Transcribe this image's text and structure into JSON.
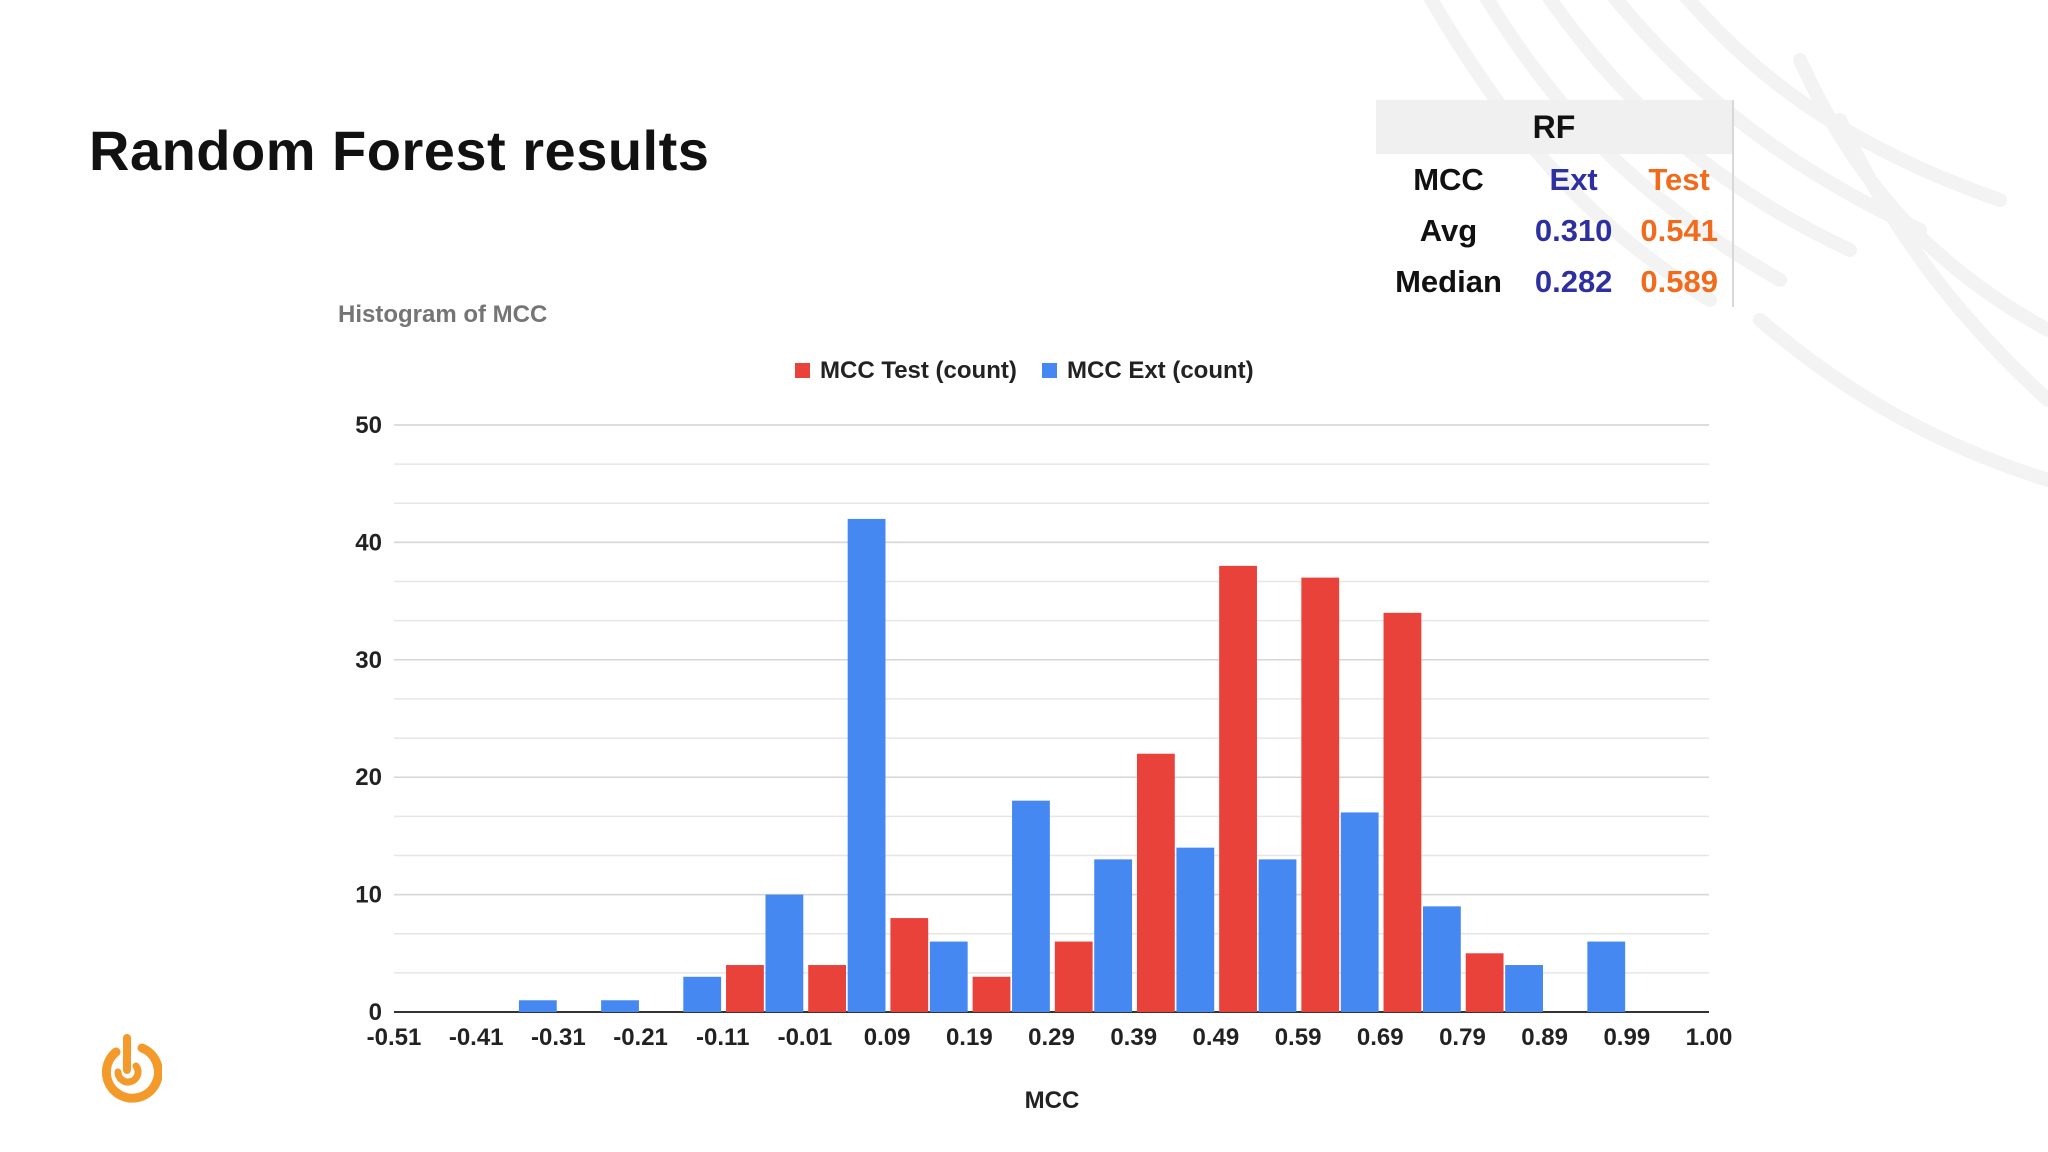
{
  "page": {
    "title": "Random Forest results"
  },
  "rf_table": {
    "header": "RF",
    "col_metric": "MCC",
    "col_ext": "Ext",
    "col_test": "Test",
    "rows": [
      {
        "label": "Avg",
        "ext": "0.310",
        "test": "0.541"
      },
      {
        "label": "Median",
        "ext": "0.282",
        "test": "0.589"
      }
    ]
  },
  "colors": {
    "test": "#e8423a",
    "ext": "#4688f1",
    "ext_text": "#2e2fa0",
    "test_text": "#f26a1b",
    "logo": "#f39a2a"
  },
  "icons": {
    "logo": "power-logo-icon"
  },
  "chart_data": {
    "type": "bar",
    "title": "Histogram of MCC",
    "xlabel": "MCC",
    "ylabel": "",
    "ylim": [
      0,
      50
    ],
    "yticks": [
      0,
      10,
      20,
      30,
      40,
      50
    ],
    "bin_edges": [
      "-0.51",
      "-0.41",
      "-0.31",
      "-0.21",
      "-0.11",
      "-0.01",
      "0.09",
      "0.19",
      "0.29",
      "0.39",
      "0.49",
      "0.59",
      "0.69",
      "0.79",
      "0.89",
      "0.99",
      "1.00"
    ],
    "series": [
      {
        "name": "MCC Test (count)",
        "key": "test",
        "values": [
          0,
          0,
          0,
          0,
          4,
          4,
          8,
          3,
          6,
          22,
          38,
          37,
          34,
          5,
          0,
          0
        ]
      },
      {
        "name": "MCC Ext (count)",
        "key": "ext",
        "values": [
          0,
          1,
          1,
          3,
          10,
          42,
          6,
          18,
          13,
          14,
          13,
          17,
          9,
          4,
          6,
          0
        ]
      }
    ],
    "legend": "top-center",
    "grid": true
  }
}
